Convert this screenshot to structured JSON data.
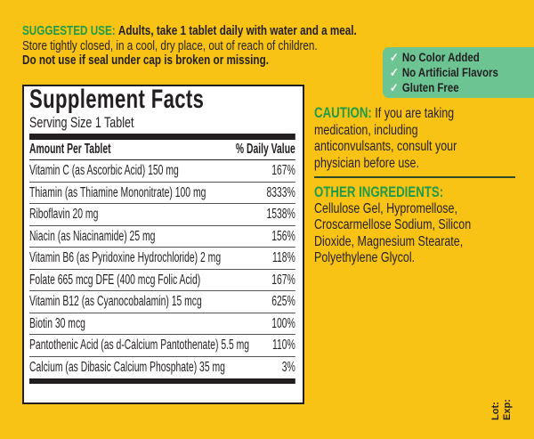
{
  "directions": {
    "heading": "SUGGESTED USE:",
    "text": "Adults, take 1 tablet daily with water and a meal.",
    "storage": "Store tightly closed, in a cool, dry place, out of reach of children.",
    "warning": "Do not use if seal under cap is broken or missing."
  },
  "badges": {
    "color": "#6cc493",
    "check": "✓",
    "items": [
      "No Color Added",
      "No Artificial Flavors",
      "Gluten Free"
    ]
  },
  "facts": {
    "title": "Supplement Facts",
    "serving": "Serving Size 1 Tablet",
    "col_amount": "Amount Per Tablet",
    "col_dv": "% Daily Value",
    "rows": [
      {
        "name": "Vitamin C (as Ascorbic Acid) 150 mg",
        "dv": "167%"
      },
      {
        "name": "Thiamin (as Thiamine Mononitrate) 100 mg",
        "dv": "8333%"
      },
      {
        "name": "Riboflavin 20 mg",
        "dv": "1538%"
      },
      {
        "name": "Niacin (as Niacinamide) 25 mg",
        "dv": "156%"
      },
      {
        "name": "Vitamin B6 (as Pyridoxine Hydrochloride) 2 mg",
        "dv": "118%"
      },
      {
        "name": "Folate 665 mcg DFE (400 mcg Folic Acid)",
        "dv": "167%"
      },
      {
        "name": "Vitamin B12 (as Cyanocobalamin) 15 mcg",
        "dv": "625%"
      },
      {
        "name": "Biotin 30 mcg",
        "dv": "100%"
      },
      {
        "name": "Pantothenic Acid (as d-Calcium Pantothenate) 5.5 mg",
        "dv": "110%"
      },
      {
        "name": "Calcium (as Dibasic Calcium Phosphate) 35 mg",
        "dv": "3%"
      }
    ]
  },
  "caution": {
    "heading": "CAUTION:",
    "lines": [
      "If you are taking",
      "medication, including",
      "anticonvulsants, consult your",
      "physician before use."
    ]
  },
  "other_ingredients": {
    "heading": "OTHER INGREDIENTS:",
    "lines": [
      "Cellulose Gel, Hypromellose,",
      "Croscarmellose Sodium, Silicon",
      "Dioxide, Magnesium Stearate,",
      "Polyethylene Glycol."
    ]
  },
  "lot": {
    "lot_label": "Lot:",
    "exp_label": "Exp:"
  }
}
